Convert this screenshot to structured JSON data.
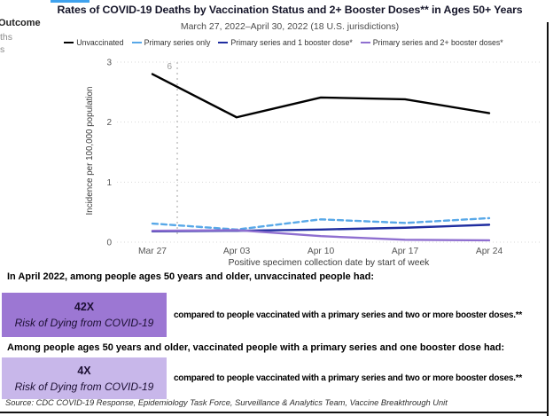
{
  "page": {
    "title": "Rates of COVID-19 Deaths by Vaccination Status and 2+ Booster Doses** in Ages 50+ Years",
    "subtitle": "March 27, 2022–April 30, 2022 (18 U.S. jurisdictions)"
  },
  "sidebar": {
    "heading": "Outcome",
    "items": [
      {
        "label": "ths"
      },
      {
        "label": "s"
      }
    ]
  },
  "chart_data": {
    "type": "line",
    "title": "Rates of COVID-19 Deaths by Vaccination Status and 2+ Booster Doses** in Ages 50+ Years",
    "subtitle": "March 27, 2022–April 30, 2022 (18 U.S. jurisdictions)",
    "x": [
      "Mar 27",
      "Apr 03",
      "Apr 10",
      "Apr 17",
      "Apr 24"
    ],
    "xlabel": "Positive specimen collection date by start of week",
    "ylabel": "Incidence per 100,000 population",
    "ylim": [
      0,
      3
    ],
    "yticks": [
      0,
      1,
      2,
      3
    ],
    "grid": true,
    "legend_position": "top",
    "series": [
      {
        "name": "Unvaccinated",
        "color": "#000000",
        "style": "solid",
        "values": [
          2.8,
          2.08,
          2.41,
          2.38,
          2.15
        ]
      },
      {
        "name": "Primary series only",
        "color": "#58a8e8",
        "style": "dashed",
        "values": [
          0.31,
          0.21,
          0.38,
          0.32,
          0.4
        ]
      },
      {
        "name": "Primary series and 1 booster dose*",
        "color": "#1f2da0",
        "style": "solid",
        "values": [
          0.18,
          0.19,
          0.21,
          0.24,
          0.29
        ]
      },
      {
        "name": "Primary series and 2+ booster doses*",
        "color": "#8f6fd0",
        "style": "solid",
        "values": [
          0.19,
          0.2,
          0.1,
          0.04,
          0.03
        ]
      }
    ],
    "annotation": {
      "label": "6",
      "x_frac": 0.295
    }
  },
  "callouts": [
    {
      "intro": "In April 2022, among people ages 50 years and older, unvaccinated people had:",
      "multiplier": "42X",
      "box_label": "Risk of Dying from COVID-19",
      "box_color": "#9c77d3",
      "comparison": "compared to people vaccinated with a primary series and two or more booster doses.**"
    },
    {
      "intro": "Among people ages 50 years and older, vaccinated people with a primary series and one booster dose had:",
      "multiplier": "4X",
      "box_label": "Risk of Dying from COVID-19",
      "box_color": "#c8b7ea",
      "comparison": "compared to people vaccinated with a primary series and two or more booster doses.**"
    }
  ],
  "source": "Source: CDC COVID-19 Response, Epidemiology Task Force, Surveillance & Analytics Team, Vaccine Breakthrough Unit"
}
